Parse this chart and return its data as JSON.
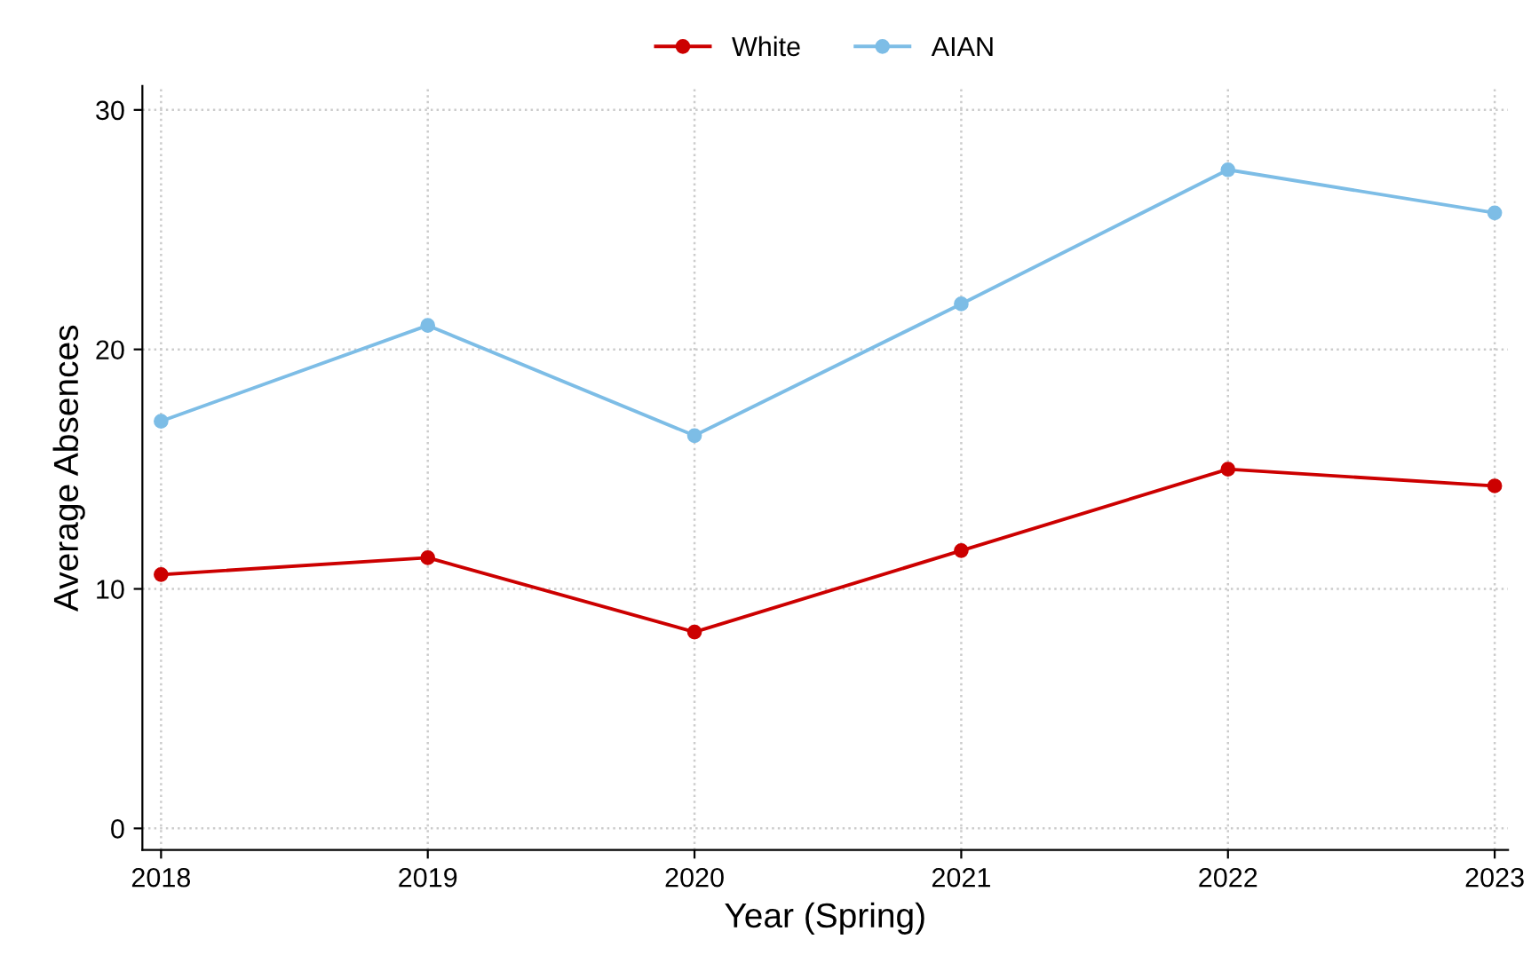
{
  "chart_data": {
    "type": "line",
    "xlabel": "Year (Spring)",
    "ylabel": "Average Absences",
    "x": [
      2018,
      2019,
      2020,
      2021,
      2022,
      2023
    ],
    "series": [
      {
        "name": "White",
        "color": "#cc0000",
        "values": [
          10.6,
          11.3,
          8.2,
          11.6,
          15.0,
          14.3
        ]
      },
      {
        "name": "AIAN",
        "color": "#7dbde6",
        "values": [
          17.0,
          21.0,
          16.4,
          21.9,
          27.5,
          25.7
        ]
      }
    ],
    "xlim": [
      2017.93,
      2023.05
    ],
    "xticks": [
      2018,
      2019,
      2020,
      2021,
      2022,
      2023
    ],
    "ylim": [
      -0.9,
      31
    ],
    "yticks": [
      0,
      10,
      20,
      30
    ],
    "grid": true,
    "legend": "top",
    "marker": "circle",
    "line_style": "solid"
  }
}
